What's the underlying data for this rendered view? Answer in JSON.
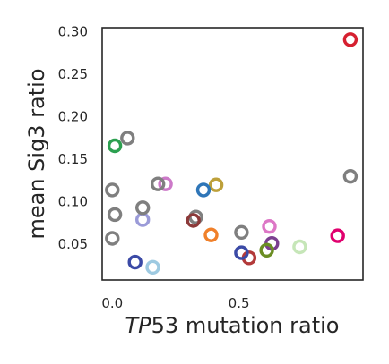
{
  "chart_data": {
    "type": "scatter",
    "xlabel_italic": "TP",
    "xlabel_rest": "53 mutation ratio",
    "ylabel": "mean Sig3 ratio",
    "xlim": [
      -0.04,
      0.99
    ],
    "ylim": [
      0.008,
      0.305
    ],
    "x_ticks": [
      {
        "value": 0.0,
        "label": "0.0"
      },
      {
        "value": 0.5,
        "label": "0.5"
      }
    ],
    "y_ticks": [
      {
        "value": 0.05,
        "label": "0.05"
      },
      {
        "value": 0.1,
        "label": "0.10"
      },
      {
        "value": 0.15,
        "label": "0.15"
      },
      {
        "value": 0.2,
        "label": "0.20"
      },
      {
        "value": 0.25,
        "label": "0.25"
      },
      {
        "value": 0.3,
        "label": "0.30"
      }
    ],
    "grid": false,
    "points": [
      {
        "x": 0.94,
        "y": 0.291,
        "color": "#d62030"
      },
      {
        "x": 0.94,
        "y": 0.13,
        "color": "#7f7f7f"
      },
      {
        "x": 0.89,
        "y": 0.06,
        "color": "#e0006e"
      },
      {
        "x": 0.74,
        "y": 0.047,
        "color": "#c6e6b8"
      },
      {
        "x": 0.63,
        "y": 0.051,
        "color": "#7b3f8f"
      },
      {
        "x": 0.62,
        "y": 0.071,
        "color": "#dd77c6"
      },
      {
        "x": 0.61,
        "y": 0.043,
        "color": "#6b8e23"
      },
      {
        "x": 0.54,
        "y": 0.034,
        "color": "#b33a3a"
      },
      {
        "x": 0.51,
        "y": 0.04,
        "color": "#3b4aa6"
      },
      {
        "x": 0.51,
        "y": 0.064,
        "color": "#7f7f7f"
      },
      {
        "x": 0.39,
        "y": 0.061,
        "color": "#f0802a"
      },
      {
        "x": 0.41,
        "y": 0.12,
        "color": "#bda03a"
      },
      {
        "x": 0.36,
        "y": 0.114,
        "color": "#2f76b8"
      },
      {
        "x": 0.33,
        "y": 0.082,
        "color": "#7f7f7f"
      },
      {
        "x": 0.32,
        "y": 0.078,
        "color": "#8c3a3a"
      },
      {
        "x": 0.21,
        "y": 0.121,
        "color": "#cc79c8"
      },
      {
        "x": 0.18,
        "y": 0.121,
        "color": "#7f7f7f"
      },
      {
        "x": 0.16,
        "y": 0.023,
        "color": "#9ecae1"
      },
      {
        "x": 0.12,
        "y": 0.079,
        "color": "#9b9bd8"
      },
      {
        "x": 0.12,
        "y": 0.093,
        "color": "#7f7f7f"
      },
      {
        "x": 0.09,
        "y": 0.029,
        "color": "#3b4aa6"
      },
      {
        "x": 0.06,
        "y": 0.175,
        "color": "#7f7f7f"
      },
      {
        "x": 0.01,
        "y": 0.166,
        "color": "#2ca050"
      },
      {
        "x": 0.0,
        "y": 0.114,
        "color": "#7f7f7f"
      },
      {
        "x": 0.01,
        "y": 0.085,
        "color": "#7f7f7f"
      },
      {
        "x": 0.0,
        "y": 0.057,
        "color": "#7f7f7f"
      }
    ]
  }
}
